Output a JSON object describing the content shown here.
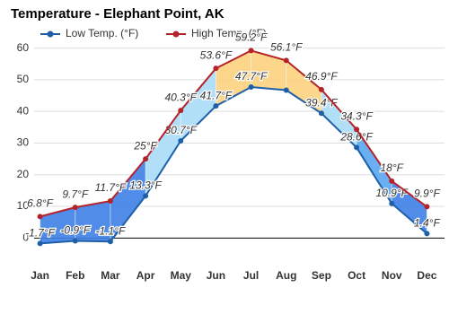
{
  "chart_data": {
    "type": "line",
    "title": "Temperature - Elephant Point, AK",
    "categories": [
      "Jan",
      "Feb",
      "Mar",
      "Apr",
      "May",
      "Jun",
      "Jul",
      "Aug",
      "Sep",
      "Oct",
      "Nov",
      "Dec"
    ],
    "series": [
      {
        "name": "Low Temp. (°F)",
        "color": "#1f5fa8",
        "values": [
          -1.7,
          -0.9,
          -1.1,
          13.3,
          30.7,
          41.7,
          47.7,
          46.7,
          39.4,
          28.6,
          10.9,
          1.4
        ],
        "value_labels": [
          "-1.7°F",
          "-0.9°F",
          "-1.1°F",
          "13.3°F",
          "30.7°F",
          "41.7°F",
          "47.7°F",
          null,
          "39.4°F",
          "28.6°F",
          "10.9°F",
          "1.4°F"
        ]
      },
      {
        "name": "High Temp. (°F)",
        "color": "#b5232a",
        "values": [
          6.8,
          9.7,
          11.7,
          25,
          40.3,
          53.6,
          59.2,
          56.1,
          46.9,
          34.3,
          18,
          9.9
        ],
        "value_labels": [
          "6.8°F",
          "9.7°F",
          "11.7°F",
          "25°F",
          "40.3°F",
          "53.6°F",
          "59.2°F",
          "56.1°F",
          "46.9°F",
          "34.3°F",
          "18°F",
          "9.9°F"
        ]
      }
    ],
    "ylim": [
      -5,
      63
    ],
    "yticks": [
      0,
      10,
      20,
      30,
      40,
      50,
      60
    ],
    "grid": true
  }
}
